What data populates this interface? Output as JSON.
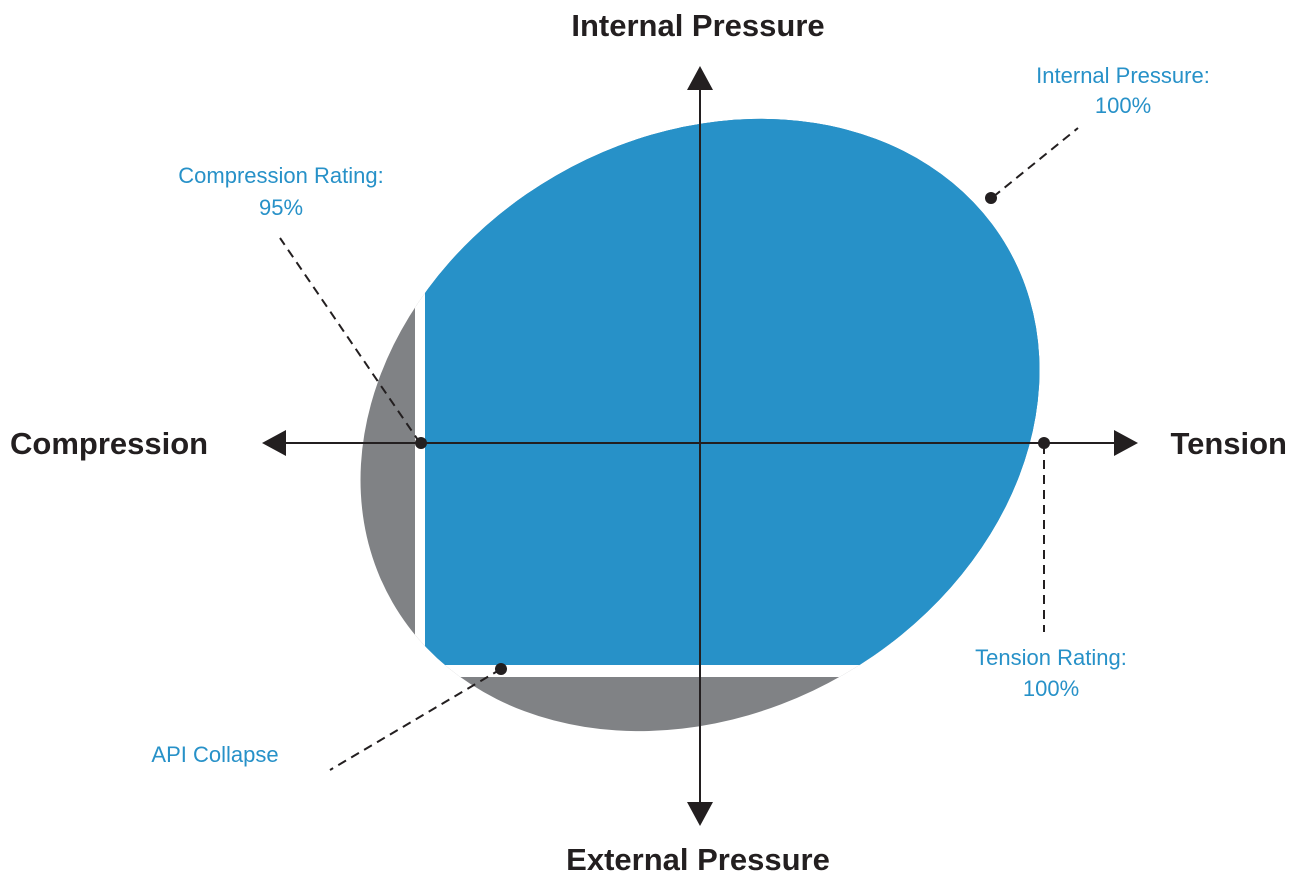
{
  "axes": {
    "top": "Internal Pressure",
    "bottom": "External Pressure",
    "left": "Compression",
    "right": "Tension"
  },
  "callouts": {
    "internal_pressure": {
      "line1": "Internal Pressure:",
      "line2": "100%"
    },
    "compression_rating": {
      "line1": "Compression Rating:",
      "line2": "95%"
    },
    "tension_rating": {
      "line1": "Tension Rating:",
      "line2": "100%"
    },
    "api_collapse": {
      "line1": "API Collapse"
    }
  },
  "colors": {
    "envelope_blue": "#2791c8",
    "collapse_gray": "#808285",
    "axis": "#231f20",
    "callout_text": "#2791c8"
  }
}
